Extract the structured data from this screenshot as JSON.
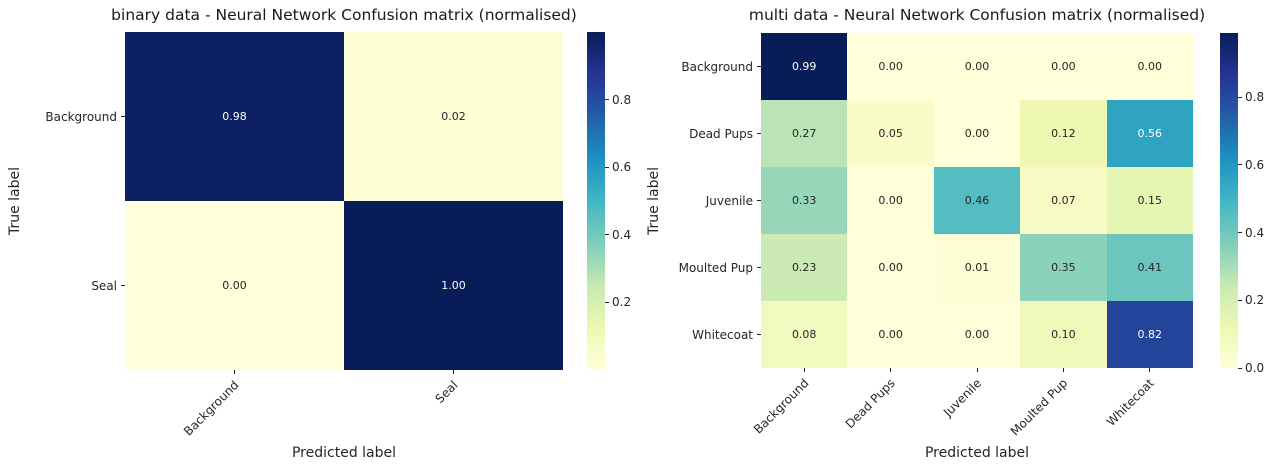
{
  "figure": {
    "background": "#ffffff",
    "text_color": "#262626",
    "title_color": "#1a1a1a"
  },
  "colormap": {
    "name": "YlGnBu",
    "stops": [
      "#ffffd9",
      "#edf8b1",
      "#c7e9b4",
      "#7fcdbb",
      "#41b6c4",
      "#1d91c0",
      "#225ea8",
      "#253494",
      "#081d58"
    ]
  },
  "annotation": {
    "light_text": "#ffffff",
    "dark_text": "#262626",
    "luminance_threshold": 0.408,
    "value_format_decimals": 2
  },
  "chart_data": [
    {
      "type": "heatmap",
      "title": "binary data - Neural Network Confusion matrix (normalised)",
      "xlabel": "Predicted label",
      "ylabel": "True label",
      "categories": [
        "Background",
        "Seal"
      ],
      "rows": [
        [
          0.98,
          0.02
        ],
        [
          0.0,
          1.0
        ]
      ],
      "vmin": 0.0,
      "vmax": 1.0,
      "colorbar_ticks": [
        0.8,
        0.6,
        0.4,
        0.2
      ],
      "colorbar_position": "right",
      "grid": false,
      "x_tick_rotation": 45,
      "annotated": true
    },
    {
      "type": "heatmap",
      "title": "multi data - Neural Network Confusion matrix (normalised)",
      "xlabel": "Predicted label",
      "ylabel": "True label",
      "categories": [
        "Background",
        "Dead Pups",
        "Juvenile",
        "Moulted Pup",
        "Whitecoat"
      ],
      "rows": [
        [
          0.99,
          0.0,
          0.0,
          0.0,
          0.0
        ],
        [
          0.27,
          0.05,
          0.0,
          0.12,
          0.56
        ],
        [
          0.33,
          0.0,
          0.46,
          0.07,
          0.15
        ],
        [
          0.23,
          0.0,
          0.01,
          0.35,
          0.41
        ],
        [
          0.08,
          0.0,
          0.0,
          0.1,
          0.82
        ]
      ],
      "vmin": 0.0,
      "vmax": 0.99,
      "colorbar_ticks": [
        0.8,
        0.6,
        0.4,
        0.2,
        0.0
      ],
      "colorbar_position": "right",
      "grid": false,
      "x_tick_rotation": 45,
      "annotated": true
    }
  ]
}
